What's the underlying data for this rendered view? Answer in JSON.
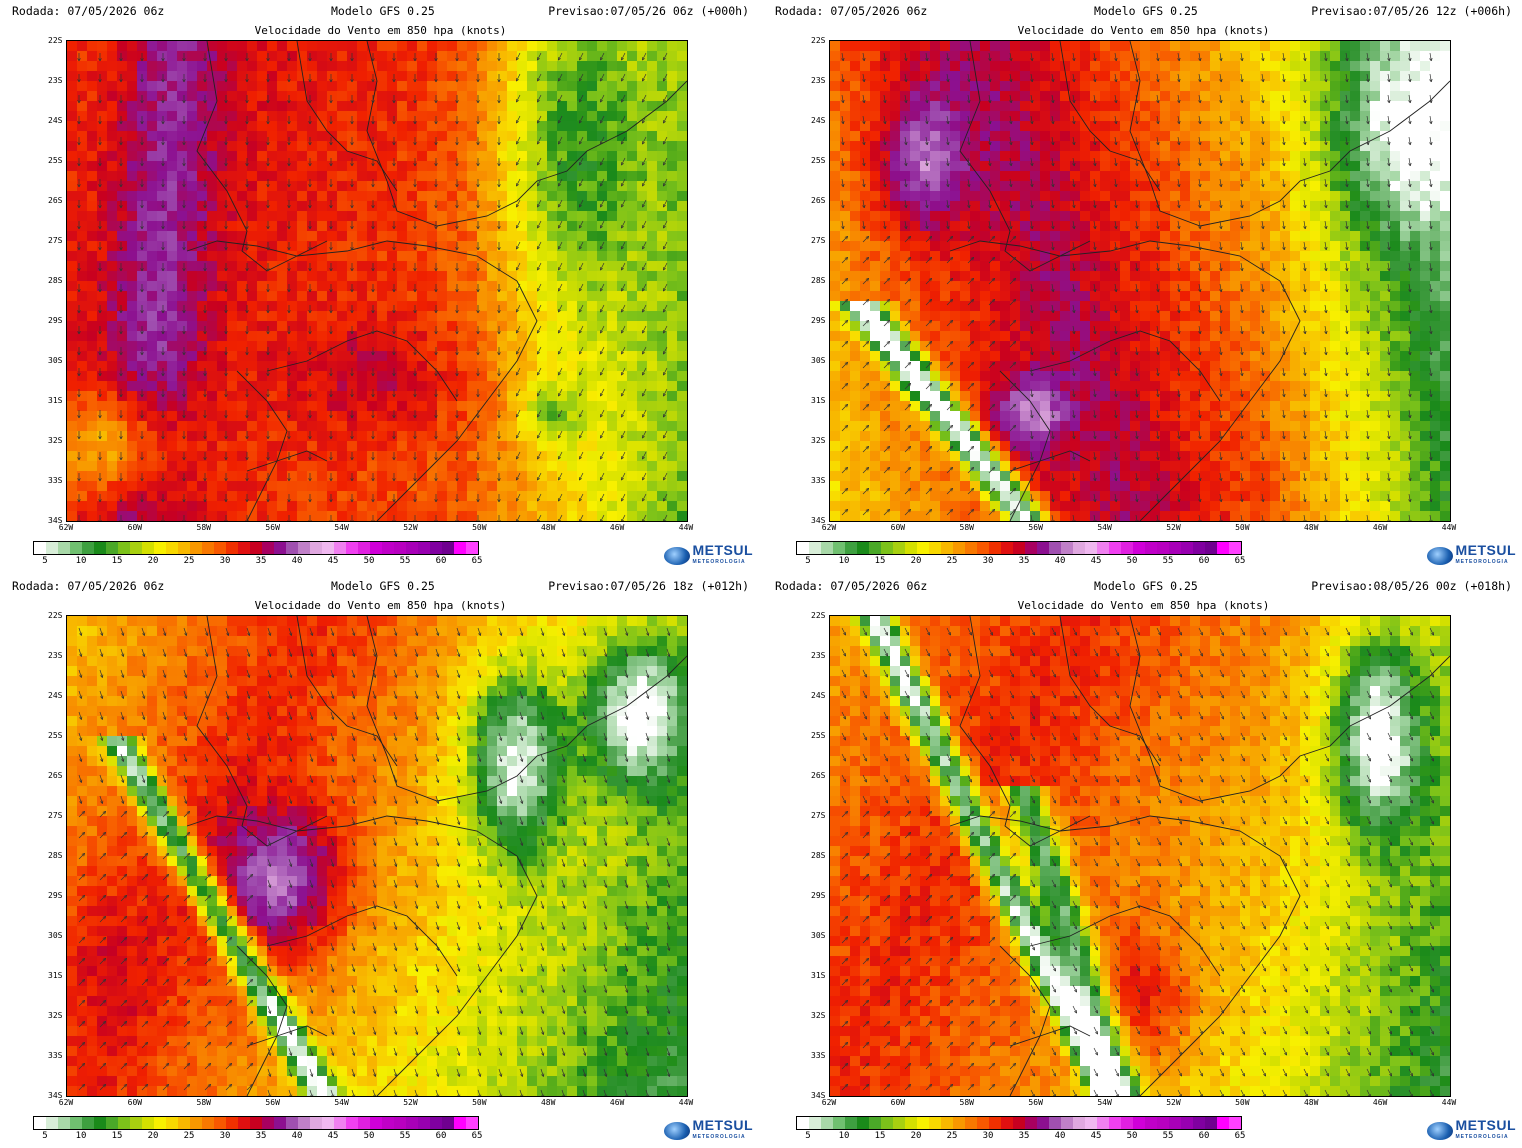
{
  "panels": [
    {
      "rodada": "Rodada: 07/05/2026 06z",
      "modelo": "Modelo GFS 0.25",
      "previsao": "Previsao:07/05/26 06z (+000h)",
      "subtitle": "Velocidade do Vento em 850 hpa (knots)",
      "seed": 11
    },
    {
      "rodada": "Rodada: 07/05/2026 06z",
      "modelo": "Modelo GFS 0.25",
      "previsao": "Previsao:07/05/26 12z (+006h)",
      "subtitle": "Velocidade do Vento em 850 hpa (knots)",
      "seed": 23
    },
    {
      "rodada": "Rodada: 07/05/2026 06z",
      "modelo": "Modelo GFS 0.25",
      "previsao": "Previsao:07/05/26 18z (+012h)",
      "subtitle": "Velocidade do Vento em 850 hpa (knots)",
      "seed": 37
    },
    {
      "rodada": "Rodada: 07/05/2026 06z",
      "modelo": "Modelo GFS 0.25",
      "previsao": "Previsao:08/05/26 00z (+018h)",
      "subtitle": "Velocidade do Vento em 850 hpa (knots)",
      "seed": 51
    }
  ],
  "lat_labels": [
    "22S",
    "23S",
    "24S",
    "25S",
    "26S",
    "27S",
    "28S",
    "29S",
    "30S",
    "31S",
    "32S",
    "33S",
    "34S"
  ],
  "lon_labels": [
    "62W",
    "60W",
    "58W",
    "56W",
    "54W",
    "52W",
    "50W",
    "48W",
    "46W",
    "44W"
  ],
  "colorbar": {
    "ticks": [
      "5",
      "10",
      "15",
      "20",
      "25",
      "30",
      "35",
      "40",
      "45",
      "50",
      "55",
      "60",
      "65"
    ],
    "colors": [
      "#ffffff",
      "#d8eed8",
      "#a8d8a8",
      "#70c070",
      "#3ea040",
      "#1a8a1a",
      "#4aa828",
      "#7cc21a",
      "#a8d010",
      "#d4e000",
      "#f8f000",
      "#f8d800",
      "#f8b800",
      "#f89800",
      "#f87800",
      "#f85800",
      "#f03000",
      "#e01010",
      "#c80020",
      "#a80060",
      "#8c1090",
      "#a050b0",
      "#c080c8",
      "#e0a8e0",
      "#f0b8f0",
      "#f080f0",
      "#f040f0",
      "#e020e0",
      "#d000d8",
      "#c000c8",
      "#b800c0",
      "#a800b8",
      "#9800b0",
      "#8000a0",
      "#700090",
      "#ff00ff",
      "#ff40ff"
    ]
  },
  "logo": {
    "name": "METSUL",
    "tagline": "METEOROLOGIA"
  }
}
